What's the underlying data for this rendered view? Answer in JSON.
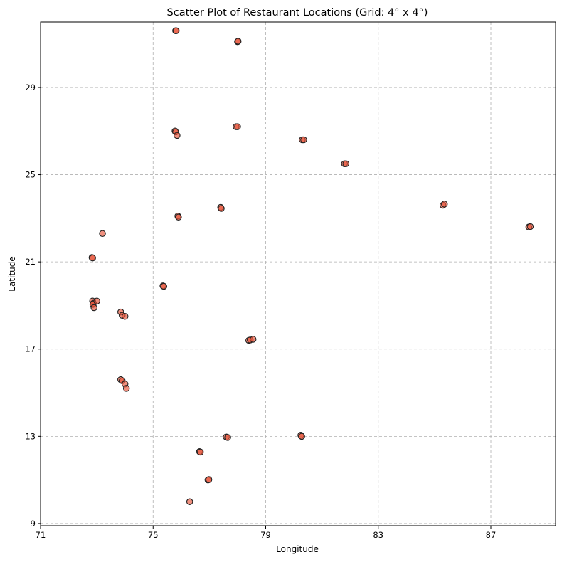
{
  "chart_data": {
    "type": "scatter",
    "title": "Scatter Plot of Restaurant Locations (Grid: 4° x 4°)",
    "xlabel": "Longitude",
    "ylabel": "Latitude",
    "xlim": [
      71,
      89.3
    ],
    "ylim": [
      8.9,
      32
    ],
    "xticks": [
      71,
      75,
      79,
      83,
      87
    ],
    "yticks": [
      9,
      13,
      17,
      21,
      25,
      29
    ],
    "grid": true,
    "marker_color": "#e8553a",
    "marker_edge": "#222222",
    "points": [
      {
        "x": 75.8,
        "y": 31.6
      },
      {
        "x": 75.82,
        "y": 31.6
      },
      {
        "x": 78.0,
        "y": 31.1
      },
      {
        "x": 78.02,
        "y": 31.12
      },
      {
        "x": 75.78,
        "y": 27.0
      },
      {
        "x": 75.8,
        "y": 26.96
      },
      {
        "x": 75.85,
        "y": 26.8
      },
      {
        "x": 77.95,
        "y": 27.2
      },
      {
        "x": 78.0,
        "y": 27.2
      },
      {
        "x": 80.3,
        "y": 26.6
      },
      {
        "x": 80.35,
        "y": 26.6
      },
      {
        "x": 81.8,
        "y": 25.5
      },
      {
        "x": 81.85,
        "y": 25.5
      },
      {
        "x": 85.3,
        "y": 23.6
      },
      {
        "x": 85.35,
        "y": 23.65
      },
      {
        "x": 77.4,
        "y": 23.5
      },
      {
        "x": 77.42,
        "y": 23.45
      },
      {
        "x": 75.88,
        "y": 23.1
      },
      {
        "x": 75.9,
        "y": 23.05
      },
      {
        "x": 88.35,
        "y": 22.6
      },
      {
        "x": 88.4,
        "y": 22.62
      },
      {
        "x": 73.2,
        "y": 22.3
      },
      {
        "x": 72.83,
        "y": 21.2
      },
      {
        "x": 72.85,
        "y": 21.18
      },
      {
        "x": 75.35,
        "y": 19.9
      },
      {
        "x": 75.38,
        "y": 19.88
      },
      {
        "x": 72.85,
        "y": 19.2
      },
      {
        "x": 72.88,
        "y": 19.1
      },
      {
        "x": 72.86,
        "y": 19.05
      },
      {
        "x": 72.9,
        "y": 18.9
      },
      {
        "x": 73.0,
        "y": 19.2
      },
      {
        "x": 73.85,
        "y": 18.7
      },
      {
        "x": 73.9,
        "y": 18.55
      },
      {
        "x": 74.0,
        "y": 18.5
      },
      {
        "x": 78.4,
        "y": 17.4
      },
      {
        "x": 78.45,
        "y": 17.42
      },
      {
        "x": 78.55,
        "y": 17.45
      },
      {
        "x": 73.85,
        "y": 15.6
      },
      {
        "x": 73.9,
        "y": 15.55
      },
      {
        "x": 74.0,
        "y": 15.4
      },
      {
        "x": 74.05,
        "y": 15.2
      },
      {
        "x": 77.6,
        "y": 12.97
      },
      {
        "x": 77.65,
        "y": 12.95
      },
      {
        "x": 80.25,
        "y": 13.05
      },
      {
        "x": 80.28,
        "y": 13.0
      },
      {
        "x": 76.65,
        "y": 12.3
      },
      {
        "x": 76.68,
        "y": 12.28
      },
      {
        "x": 76.95,
        "y": 11.0
      },
      {
        "x": 76.98,
        "y": 11.02
      },
      {
        "x": 76.3,
        "y": 10.0
      }
    ]
  }
}
